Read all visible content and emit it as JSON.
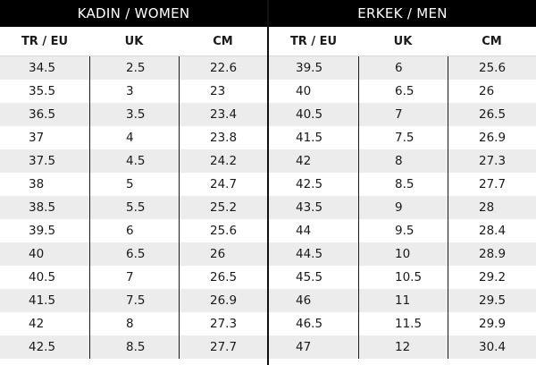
{
  "women": {
    "title": "KADIN / WOMEN",
    "headers": [
      "TR / EU",
      "UK",
      "CM"
    ],
    "rows": [
      [
        "34.5",
        "2.5",
        "22.6"
      ],
      [
        "35.5",
        "3",
        "23"
      ],
      [
        "36.5",
        "3.5",
        "23.4"
      ],
      [
        "37",
        "4",
        "23.8"
      ],
      [
        "37.5",
        "4.5",
        "24.2"
      ],
      [
        "38",
        "5",
        "24.7"
      ],
      [
        "38.5",
        "5.5",
        "25.2"
      ],
      [
        "39.5",
        "6",
        "25.6"
      ],
      [
        "40",
        "6.5",
        "26"
      ],
      [
        "40.5",
        "7",
        "26.5"
      ],
      [
        "41.5",
        "7.5",
        "26.9"
      ],
      [
        "42",
        "8",
        "27.3"
      ],
      [
        "42.5",
        "8.5",
        "27.7"
      ]
    ]
  },
  "men": {
    "title": "ERKEK / MEN",
    "headers": [
      "TR / EU",
      "UK",
      "CM"
    ],
    "rows": [
      [
        "39.5",
        "6",
        "25.6"
      ],
      [
        "40",
        "6.5",
        "26"
      ],
      [
        "40.5",
        "7",
        "26.5"
      ],
      [
        "41.5",
        "7.5",
        "26.9"
      ],
      [
        "42",
        "8",
        "27.3"
      ],
      [
        "42.5",
        "8.5",
        "27.7"
      ],
      [
        "43.5",
        "9",
        "28"
      ],
      [
        "44",
        "9.5",
        "28.4"
      ],
      [
        "44.5",
        "10",
        "28.9"
      ],
      [
        "45.5",
        "10.5",
        "29.2"
      ],
      [
        "46",
        "11",
        "29.5"
      ],
      [
        "46.5",
        "11.5",
        "29.9"
      ],
      [
        "47",
        "12",
        "30.4"
      ]
    ]
  }
}
